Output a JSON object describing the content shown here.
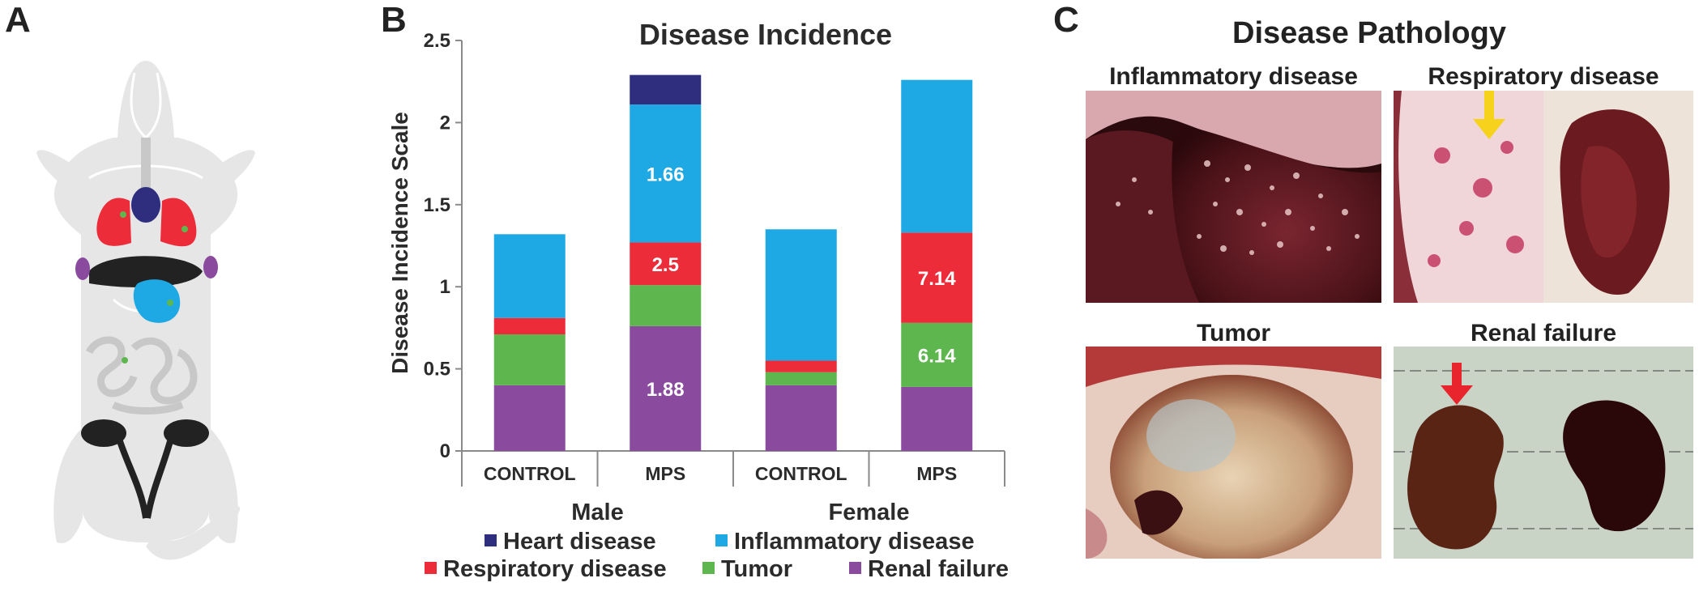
{
  "panels": {
    "a_label": "A",
    "b_label": "B",
    "c_label": "C"
  },
  "pathology": {
    "title": "Disease Pathology",
    "images": [
      {
        "title": "Inflammatory disease"
      },
      {
        "title": "Respiratory disease"
      },
      {
        "title": "Tumor"
      },
      {
        "title": "Renal failure"
      }
    ]
  },
  "chart_data": {
    "type": "bar",
    "stacked": true,
    "title": "Disease Incidence",
    "ylabel": "Disease Incidence Scale",
    "xlabel": "",
    "ylim": [
      0,
      2.5
    ],
    "yticks": [
      "0",
      "0.5",
      "1",
      "1.5",
      "2",
      "2.5"
    ],
    "ytick_values": [
      0,
      0.5,
      1,
      1.5,
      2,
      2.5
    ],
    "categories": [
      "CONTROL",
      "MPS",
      "CONTROL",
      "MPS"
    ],
    "groups": [
      {
        "label": "Male",
        "categories": [
          0,
          1
        ]
      },
      {
        "label": "Female",
        "categories": [
          2,
          3
        ]
      }
    ],
    "series": [
      {
        "name": "Renal failure",
        "color": "#8a4b9f",
        "values": [
          0.4,
          0.76,
          0.4,
          0.39
        ],
        "labels": [
          "",
          "1.88",
          "",
          ""
        ]
      },
      {
        "name": "Tumor",
        "color": "#5db74e",
        "values": [
          0.31,
          0.25,
          0.08,
          0.39
        ],
        "labels": [
          "",
          "",
          "",
          "6.14"
        ]
      },
      {
        "name": "Respiratory disease",
        "color": "#ed2c3a",
        "values": [
          0.1,
          0.26,
          0.07,
          0.55
        ],
        "labels": [
          "",
          "2.5",
          "",
          "7.14"
        ]
      },
      {
        "name": "Inflammatory disease",
        "color": "#1fa9e4",
        "values": [
          0.51,
          0.84,
          0.8,
          0.93
        ],
        "labels": [
          "",
          "1.66",
          "",
          ""
        ]
      },
      {
        "name": "Heart disease",
        "color": "#2e2d7e",
        "values": [
          0,
          0.18,
          0,
          0
        ],
        "labels": [
          "",
          "",
          "",
          ""
        ]
      }
    ],
    "legend": {
      "placement": "bottom",
      "order": [
        "Heart disease",
        "Inflammatory disease",
        "Respiratory disease",
        "Tumor",
        "Renal failure"
      ]
    },
    "grid": false
  },
  "colors": {
    "mouse_body": "#e6e6e6",
    "lung": "#ed2c3a",
    "heart": "#2e2d7e",
    "liver": "#222222",
    "spleen": "#1fa9e4",
    "lymph": "#8a4b9f",
    "dot": "#5db74e"
  }
}
